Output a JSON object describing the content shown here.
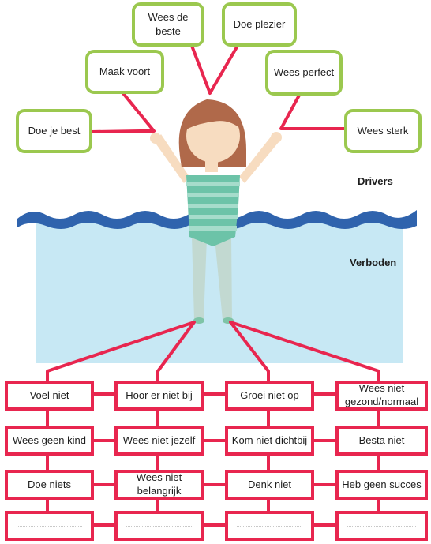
{
  "labels": {
    "drivers": "Drivers",
    "verboden": "Verboden"
  },
  "drivers": [
    "Wees de beste",
    "Doe plezier",
    "Maak voort",
    "Wees perfect",
    "Doe je best",
    "Wees sterk"
  ],
  "verboden": [
    [
      "Voel niet",
      "Hoor er niet bij",
      "Groei niet op",
      "Wees niet gezond/normaal"
    ],
    [
      "Wees geen kind",
      "Wees niet jezelf",
      "Kom niet dichtbij",
      "Besta niet"
    ],
    [
      "Doe niets",
      "Wees niet belangrijk",
      "Denk niet",
      "Heb geen succes"
    ]
  ],
  "colors": {
    "driver_border": "#9bc84f",
    "verbod_border": "#e8264f",
    "water": "#c7e8f4",
    "wave": "#2f63ad",
    "swimsuit": "#6cc3a8",
    "hair": "#b0694a",
    "skin": "#f7dcc0"
  }
}
